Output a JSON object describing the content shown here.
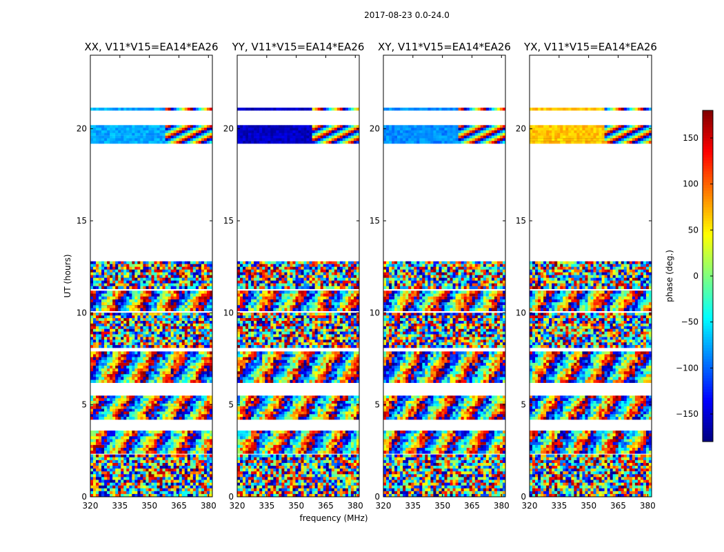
{
  "chart_data": {
    "type": "heatmap",
    "suptitle": "2017-08-23 0.0-24.0",
    "xlabel": "frequency (MHz)",
    "ylabel": "UT (hours)",
    "xlim": [
      320,
      382
    ],
    "ylim": [
      0,
      24
    ],
    "xticks": [
      320,
      335,
      350,
      365,
      380
    ],
    "yticks": [
      0,
      5,
      10,
      15,
      20
    ],
    "colorbar": {
      "label": "phase (deg.)",
      "range": [
        -180,
        180
      ],
      "ticks": [
        150,
        100,
        50,
        0,
        -50,
        -100,
        -150
      ],
      "tick_labels": [
        "150",
        "100",
        "50",
        "0",
        "−50",
        "−100",
        "−150"
      ],
      "colormap": "jet",
      "colors": [
        "#00007f",
        "#0000ff",
        "#007fff",
        "#00ffff",
        "#7fff7f",
        "#ffff00",
        "#ff7f00",
        "#ff0000",
        "#7f0000"
      ]
    },
    "panels": [
      {
        "title": "XX, V11*V15=EA14*EA26",
        "mean_phase_deg": -75
      },
      {
        "title": "YY, V11*V15=EA14*EA26",
        "mean_phase_deg": -155
      },
      {
        "title": "XY, V11*V15=EA14*EA26",
        "mean_phase_deg": -85
      },
      {
        "title": "YX, V11*V15=EA14*EA26",
        "mean_phase_deg": 65
      }
    ],
    "scans": [
      {
        "start": 0.0,
        "end": 2.3,
        "style": "noisy"
      },
      {
        "start": 2.35,
        "end": 3.6,
        "style": "fringe"
      },
      {
        "start": 4.2,
        "end": 5.5,
        "style": "fringe"
      },
      {
        "start": 6.2,
        "end": 7.9,
        "style": "fringe"
      },
      {
        "start": 8.1,
        "end": 10.0,
        "style": "noisy"
      },
      {
        "start": 10.1,
        "end": 11.2,
        "style": "fringe"
      },
      {
        "start": 11.3,
        "end": 12.8,
        "style": "noisy"
      },
      {
        "start": 19.2,
        "end": 20.2,
        "style": "constant"
      },
      {
        "start": 21.0,
        "end": 21.15,
        "style": "constant"
      }
    ]
  }
}
